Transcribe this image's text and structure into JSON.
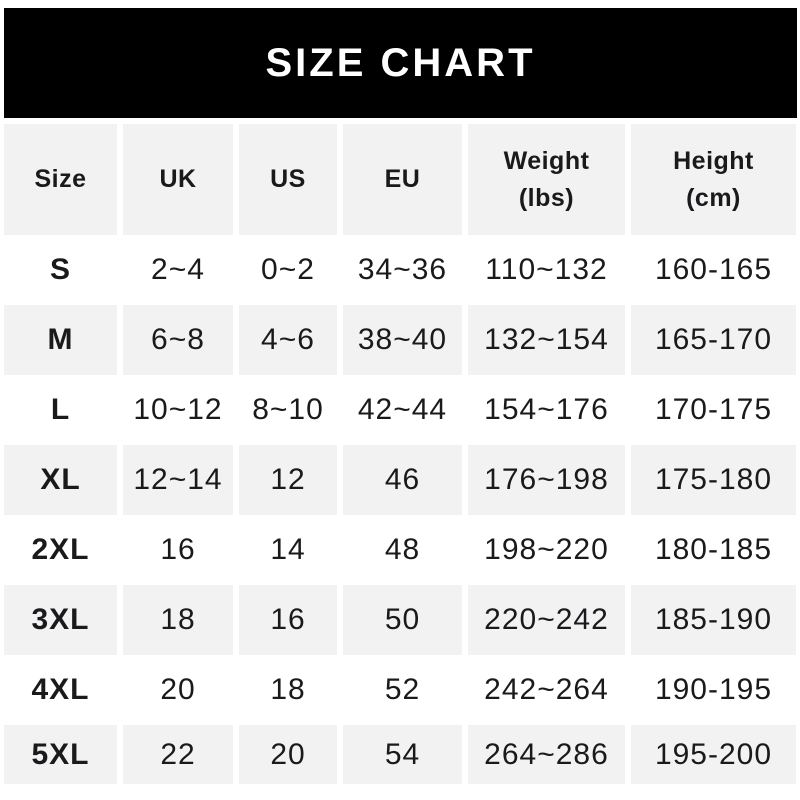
{
  "banner": {
    "title": "SIZE CHART"
  },
  "colors": {
    "banner_bg": "#000000",
    "banner_text": "#ffffff",
    "shaded_row_bg": "#f2f2f3",
    "row_bg": "#ffffff",
    "text": "#1a1a1c"
  },
  "header": {
    "cells": [
      {
        "label": "Size"
      },
      {
        "label": "UK"
      },
      {
        "label": "US"
      },
      {
        "label": "EU"
      },
      {
        "label": "Weight",
        "sub": "(lbs)"
      },
      {
        "label": "Height",
        "sub": "(cm)"
      }
    ]
  },
  "chart_data": {
    "type": "table",
    "title": "SIZE CHART",
    "columns": [
      "Size",
      "UK",
      "US",
      "EU",
      "Weight (lbs)",
      "Height (cm)"
    ],
    "rows": [
      [
        "S",
        "2~4",
        "0~2",
        "34~36",
        "110~132",
        "160-165"
      ],
      [
        "M",
        "6~8",
        "4~6",
        "38~40",
        "132~154",
        "165-170"
      ],
      [
        "L",
        "10~12",
        "8~10",
        "42~44",
        "154~176",
        "170-175"
      ],
      [
        "XL",
        "12~14",
        "12",
        "46",
        "176~198",
        "175-180"
      ],
      [
        "2XL",
        "16",
        "14",
        "48",
        "198~220",
        "180-185"
      ],
      [
        "3XL",
        "18",
        "16",
        "50",
        "220~242",
        "185-190"
      ],
      [
        "4XL",
        "20",
        "18",
        "52",
        "242~264",
        "190-195"
      ],
      [
        "5XL",
        "22",
        "20",
        "54",
        "264~286",
        "195-200"
      ]
    ]
  }
}
